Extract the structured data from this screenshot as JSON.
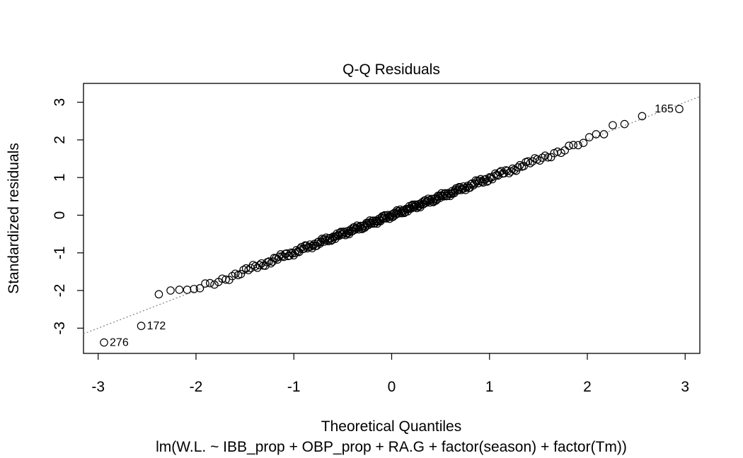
{
  "chart_data": {
    "type": "scatter",
    "title": "Q-Q Residuals",
    "xlabel": "Theoretical Quantiles",
    "ylabel": "Standardized residuals",
    "subtitle": "lm(W.L. ~ IBB_prop + OBP_prop + RA.G + factor(season) + factor(Tm))",
    "xlim": [
      -3.15,
      3.15
    ],
    "ylim": [
      -3.67,
      3.5
    ],
    "xticks": [
      -3,
      -2,
      -1,
      0,
      1,
      2,
      3
    ],
    "yticks": [
      -3,
      -2,
      -1,
      0,
      1,
      2,
      3
    ],
    "xtick_labels": [
      "-3",
      "-2",
      "-1",
      "0",
      "1",
      "2",
      "3"
    ],
    "ytick_labels": [
      "-3",
      "-2",
      "-1",
      "0",
      "1",
      "2",
      "3"
    ],
    "reference_line": {
      "intercept": 0,
      "slope": 1.0,
      "style": "dotted",
      "color": "#808080"
    },
    "grid": false,
    "legend": "none",
    "n_points": 300,
    "tail_points": [
      {
        "x": -2.94,
        "y": -3.38
      },
      {
        "x": -2.56,
        "y": -2.94
      },
      {
        "x": -2.38,
        "y": -2.1
      },
      {
        "x": -2.26,
        "y": -2.0
      },
      {
        "x": -2.17,
        "y": -1.98
      },
      {
        "x": -2.09,
        "y": -1.98
      },
      {
        "x": -2.02,
        "y": -1.96
      },
      {
        "x": -1.96,
        "y": -1.94
      },
      {
        "x": 1.96,
        "y": 1.92
      },
      {
        "x": 2.02,
        "y": 2.07
      },
      {
        "x": 2.09,
        "y": 2.15
      },
      {
        "x": 2.17,
        "y": 2.15
      },
      {
        "x": 2.26,
        "y": 2.39
      },
      {
        "x": 2.38,
        "y": 2.42
      },
      {
        "x": 2.56,
        "y": 2.63
      },
      {
        "x": 2.94,
        "y": 2.82
      }
    ],
    "annotations": [
      {
        "label": "276",
        "x": -2.94,
        "y": -3.38
      },
      {
        "label": "172",
        "x": -2.56,
        "y": -2.94
      },
      {
        "label": "165",
        "x": 2.94,
        "y": 2.82
      }
    ]
  }
}
